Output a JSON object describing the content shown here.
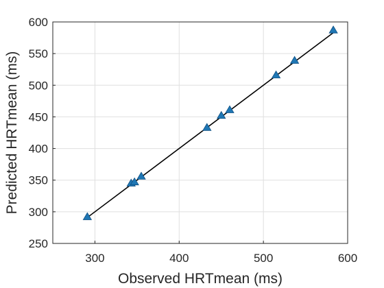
{
  "chart_data": {
    "type": "scatter",
    "xlabel": "Observed HRTmean (ms)",
    "ylabel": "Predicted HRTmean (ms)",
    "xlim": [
      250,
      600
    ],
    "ylim": [
      250,
      600
    ],
    "xticks": [
      300,
      400,
      500,
      600
    ],
    "yticks": [
      250,
      300,
      350,
      400,
      450,
      500,
      550,
      600
    ],
    "grid": true,
    "series": [
      {
        "marker": "triangle",
        "color": "#1f77b4",
        "points": [
          [
            291,
            292
          ],
          [
            343,
            345
          ],
          [
            347,
            347
          ],
          [
            355,
            356
          ],
          [
            433,
            433
          ],
          [
            450,
            452
          ],
          [
            460,
            461
          ],
          [
            515,
            516
          ],
          [
            537,
            539
          ],
          [
            583,
            587
          ]
        ]
      }
    ],
    "fit_line": {
      "color": "#000000",
      "from": [
        291,
        291
      ],
      "to": [
        584,
        584
      ]
    }
  }
}
